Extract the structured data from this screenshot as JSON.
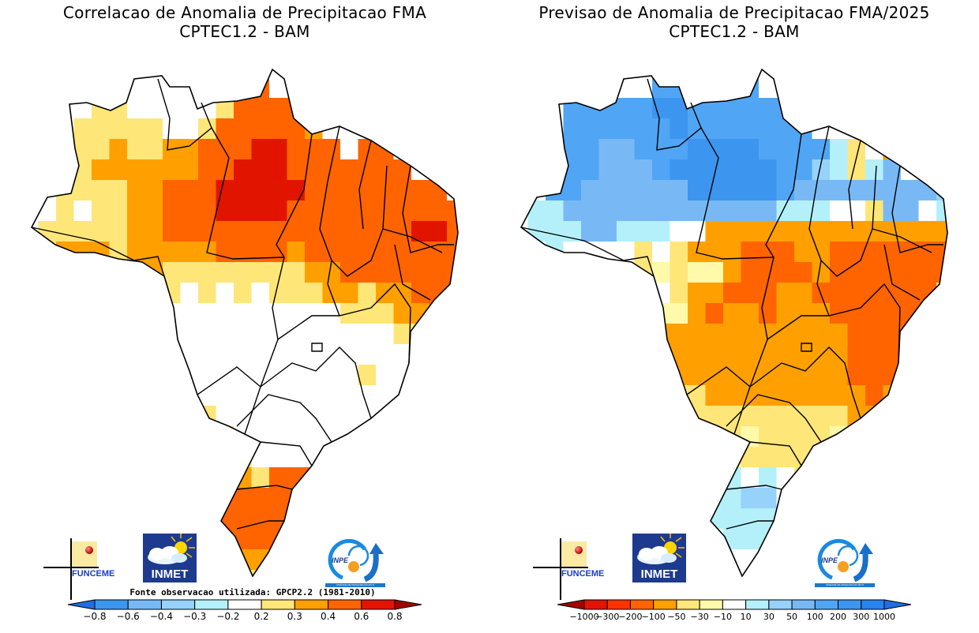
{
  "chart_data": [
    {
      "type": "heatmap",
      "title": "Correlacao de Anomalia de Precipitacao FMA",
      "subtitle": "CPTEC1.2 - BAM",
      "source_note": "Fonte observacao utilizada: GPCP2.2 (1981-2010)",
      "colorbar": {
        "ticks": [
          "-0.8",
          "-0.6",
          "-0.4",
          "-0.3",
          "-0.2",
          "0.2",
          "0.3",
          "0.4",
          "0.6",
          "0.8"
        ],
        "colors": [
          "#1e6ee6",
          "#3c96f0",
          "#78b9f5",
          "#96d2fa",
          "#b4f0fa",
          "#ffffff",
          "#ffe678",
          "#ffa000",
          "#ff6400",
          "#e11400",
          "#a50000"
        ],
        "extend": "both"
      },
      "legend": {
        "y": "0.2 to 0.3",
        "o": "0.3 to 0.4",
        "r": "0.4 to 0.6",
        "d": "0.6 to 0.8",
        "w": "-0.2 to 0.2"
      },
      "grid": [
        "..........................",
        "........ww...r............",
        "...wyywwwwwyrrrr..........",
        "...yyyyywwyrrrrro.........",
        "...yyoyyoorrrddrrr.rr.....",
        "..yyoooooorrdddrrrrrrr....",
        "..yyyyoorrrdddddrrrrrrrr..",
        "..ywyyoorrrddddrrrrrrrrrr.",
        ".yyyyyoorrrrrrrrrrrrrrddr.",
        ".yoooyooooorrrrorrrrrrrrr.",
        "..orroooyyyyyyyyoorrrrrrr.",
        "..rrroyyywywywyyyooyoorrr.",
        "....oywwwwwwwwwwwwyyyoorr.",
        ".....wwwwwwwwwwwwwwwwyyoy.",
        "......wywwwwwwwwwwwwwwwwy.",
        "........wwwwwwwwwwwywwwww.",
        "........wwwwwwwwwwwwwwww..",
        "........yyywwwwwwwwwwwwy..",
        "........ooyywwwwwwwwwyy...",
        ".........rryywwwwwwww.....",
        "..........droyrrroy.......",
        "...........rrrrrrr........",
        "...........rrrrrr.........",
        "..........rrrrrrr.........",
        "...........oooor..........",
        ".............yo..........."
      ]
    },
    {
      "type": "heatmap",
      "title": "Previsao de Anomalia de Precipitacao FMA/2025",
      "subtitle": "CPTEC1.2 - BAM",
      "colorbar": {
        "ticks": [
          "-1000",
          "-300",
          "-200",
          "-100",
          "-50",
          "-30",
          "-10",
          "10",
          "30",
          "50",
          "100",
          "200",
          "300",
          "1000"
        ],
        "colors": [
          "#a50000",
          "#e11400",
          "#ff3200",
          "#ff6400",
          "#ffa000",
          "#ffe678",
          "#fffaaa",
          "#ffffff",
          "#b4f0fa",
          "#96d2fa",
          "#78b9f5",
          "#50a5f5",
          "#3c96f0",
          "#2882f0",
          "#1e6ee6"
        ],
        "extend": "both"
      },
      "legend": {
        "D": "-1000 to -300",
        "R": "-100 to -50",
        "O": "-50 to -30",
        "Y": "-30 to -10",
        "L": "-10 to 10 (pale yellow)",
        "w": "white",
        "c": "10 to 30",
        "s": "30 to 50",
        "b": "50 to 100",
        "B": "100 to 200",
        "N": "200 to 300"
      },
      "grid": [
        "..........................",
        "........BBB..B............",
        "...BBBBBNNBBBBBB..........",
        "...BBBBBBNBBBBBBB.........",
        "...BBbbBBBNNNNBBBBcYwO....",
        "..BBBbbbBNNNNNNBBscYcb....",
        "..BBbbbbbbNNNNNBbbbbbbbbs.",
        ".ccbbbbbbbbbbbbcccwwYbbwcc",
        ".cccbbcccwwOOOOOOOOOOOOOOO",
        ".wcwwwwYwYOOORRROORRRRRRRO",
        "..wwYLYYLYLLORRRRORRRRRRRO",
        "..YYLYYLwYOORRROORRRRRRRYO",
        "....YOOOLLOROOROOORRRRRRRO",
        ".....OOOOOOOOOOOOOORRRRROc",
        "......OOOOOOOOOOOOORRRRROY",
        "........YOOOOOOOOOORRROYw.",
        "........YYYOOOOOOOOOROOOY.",
        "........LLYYYYYYYYYOOOOO..",
        "........LLYYYLYYYYLLOOO...",
        ".........LLLLYYYYYYY......",
        "..........wccwcwYY........",
        "...........ccsswL.........",
        "...........cccccwL........",
        "..........LwcccwL.........",
        "...........LwwwL..........",
        ".............ww..........."
      ]
    }
  ],
  "logos": {
    "funceme": "FUNCEME",
    "inmet": "INMET",
    "inpe": "INPE",
    "inpe_sub": "UNIDADE DE PESQUISA DO MCTI"
  }
}
